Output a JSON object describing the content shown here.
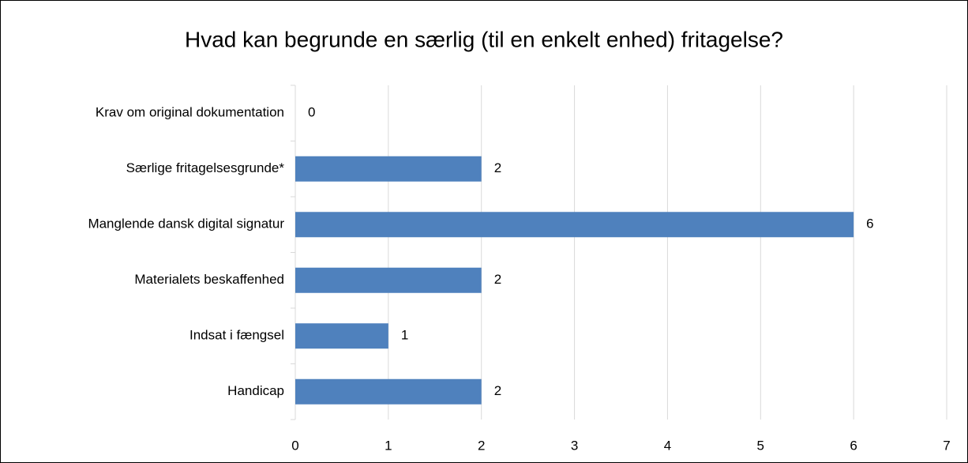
{
  "chart_data": {
    "type": "bar",
    "orientation": "horizontal",
    "title": "Hvad kan begrunde en særlig (til en enkelt enhed) fritagelse?",
    "categories": [
      "Krav om original dokumentation",
      "Særlige fritagelsesgrunde*",
      "Manglende dansk digital signatur",
      "Materialets beskaffenhed",
      "Indsat i fængsel",
      "Handicap"
    ],
    "values": [
      0,
      2,
      6,
      2,
      1,
      2
    ],
    "color": "#4f81bd",
    "xlim": [
      0,
      7
    ],
    "xticks": [
      0,
      1,
      2,
      3,
      4,
      5,
      6,
      7
    ],
    "grid": true
  }
}
